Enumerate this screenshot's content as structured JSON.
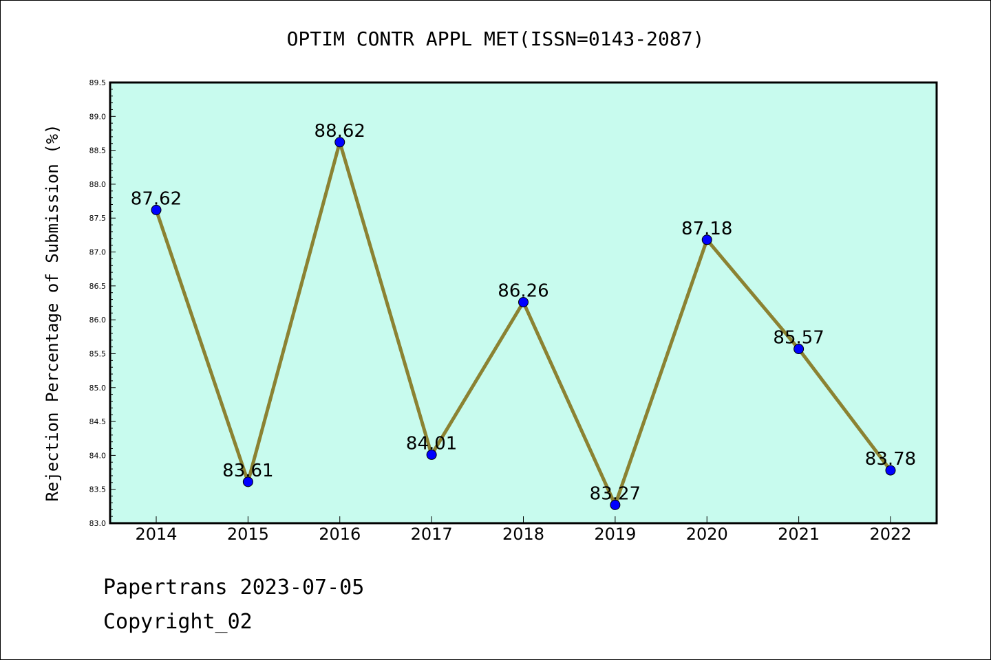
{
  "chart_data": {
    "type": "line",
    "title": "OPTIM CONTR APPL MET(ISSN=0143-2087)",
    "xlabel": "",
    "ylabel": "Rejection Percentage of Submission (%)",
    "categories": [
      "2014",
      "2015",
      "2016",
      "2017",
      "2018",
      "2019",
      "2020",
      "2021",
      "2022"
    ],
    "series": [
      {
        "values": [
          87.62,
          83.61,
          88.62,
          84.01,
          86.26,
          83.27,
          87.18,
          85.57,
          83.78
        ],
        "labels": [
          "87.62",
          "83.61",
          "88.62",
          "84.01",
          "86.26",
          "83.27",
          "87.18",
          "85.57",
          "83.78"
        ]
      }
    ],
    "ylim": [
      83.0,
      89.5
    ],
    "yticks": [
      "83.0",
      "83.5",
      "84.0",
      "84.5",
      "85.0",
      "85.5",
      "86.0",
      "86.5",
      "87.0",
      "87.5",
      "88.0",
      "88.5",
      "89.0",
      "89.5"
    ],
    "grid": false,
    "colors": {
      "plot_background": "#c8fbee",
      "line": "#8b8232",
      "marker": "#0000ff"
    }
  },
  "footer": {
    "line1": "Papertrans 2023-07-05",
    "line2": "Copyright_02"
  }
}
